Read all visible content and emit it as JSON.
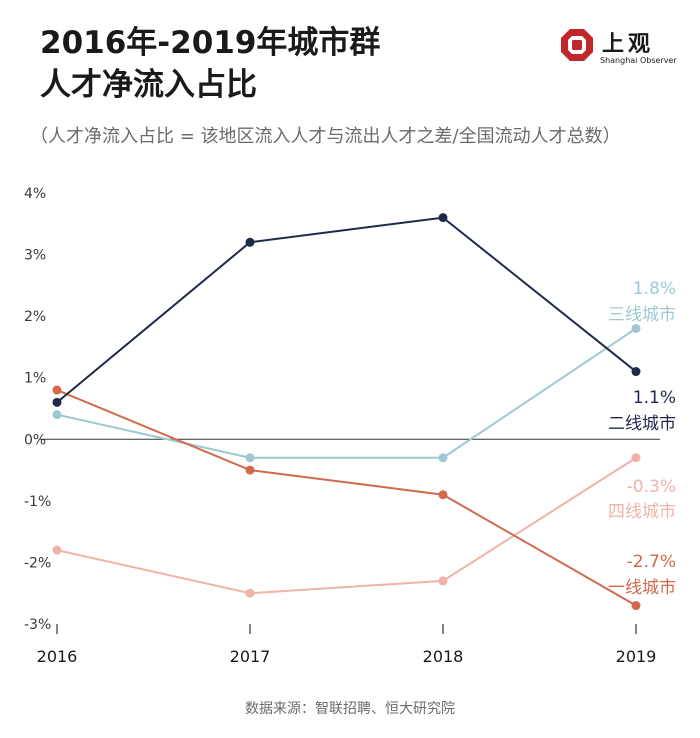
{
  "header": {
    "title_line1": "2016年-2019年城市群",
    "title_line2": "人才净流入占比",
    "subtitle": "（人才净流入占比 = 该地区流入人才与流出人才之差/全国流动人才总数）"
  },
  "logo": {
    "name": "上观",
    "english": "Shanghai Observer",
    "icon": "shanghai-observer-logo-icon",
    "color": "#c0272d"
  },
  "source": "数据来源：智联招聘、恒大研究院",
  "chart_data": {
    "type": "line",
    "categories": [
      "2016",
      "2017",
      "2018",
      "2019"
    ],
    "ylim": [
      -3,
      4
    ],
    "yticks": [
      "4%",
      "3%",
      "2%",
      "1%",
      "0%",
      "-1%",
      "-2%",
      "-3%"
    ],
    "grid": false,
    "series": [
      {
        "name": "二线城市",
        "values": [
          0.6,
          3.2,
          3.6,
          1.1
        ],
        "end_label": "1.1%",
        "color": "#1f2a4a"
      },
      {
        "name": "三线城市",
        "values": [
          0.4,
          -0.3,
          -0.3,
          1.8
        ],
        "end_label": "1.8%",
        "color": "#9ec9d2"
      },
      {
        "name": "一线城市",
        "values": [
          0.8,
          -0.5,
          -0.9,
          -2.7
        ],
        "end_label": "-2.7%",
        "color": "#d2694b"
      },
      {
        "name": "四线城市",
        "values": [
          -1.8,
          -2.5,
          -2.3,
          -0.3
        ],
        "end_label": "-0.3%",
        "color": "#f0b3a8"
      }
    ]
  }
}
